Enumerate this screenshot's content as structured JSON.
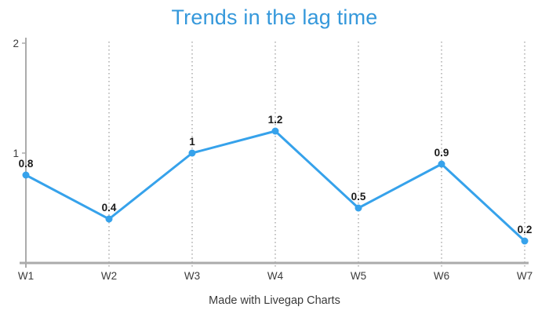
{
  "chart_data": {
    "type": "line",
    "title": "Trends in the lag time",
    "categories": [
      "W1",
      "W2",
      "W3",
      "W4",
      "W5",
      "W6",
      "W7"
    ],
    "series": [
      {
        "name": "lag time",
        "values": [
          0.8,
          0.4,
          1,
          1.2,
          0.5,
          0.9,
          0.2
        ]
      }
    ],
    "data_labels": [
      "0.8",
      "0.4",
      "1",
      "1.2",
      "0.5",
      "0.9",
      "0.2"
    ],
    "y_ticks": [
      {
        "value": 1,
        "label": "1"
      },
      {
        "value": 2,
        "label": "2"
      }
    ],
    "ylim": [
      0,
      2
    ],
    "grid": "vertical-dotted",
    "legend": "none",
    "footer": "Made with Livegap Charts",
    "colors": {
      "title": "#3598db",
      "line": "#36a2eb",
      "point": "#36a2eb",
      "axis": "#ababab",
      "gridline": "#969696",
      "data_label": "#1a1a1a",
      "tick_label": "#3c3c3c"
    }
  }
}
